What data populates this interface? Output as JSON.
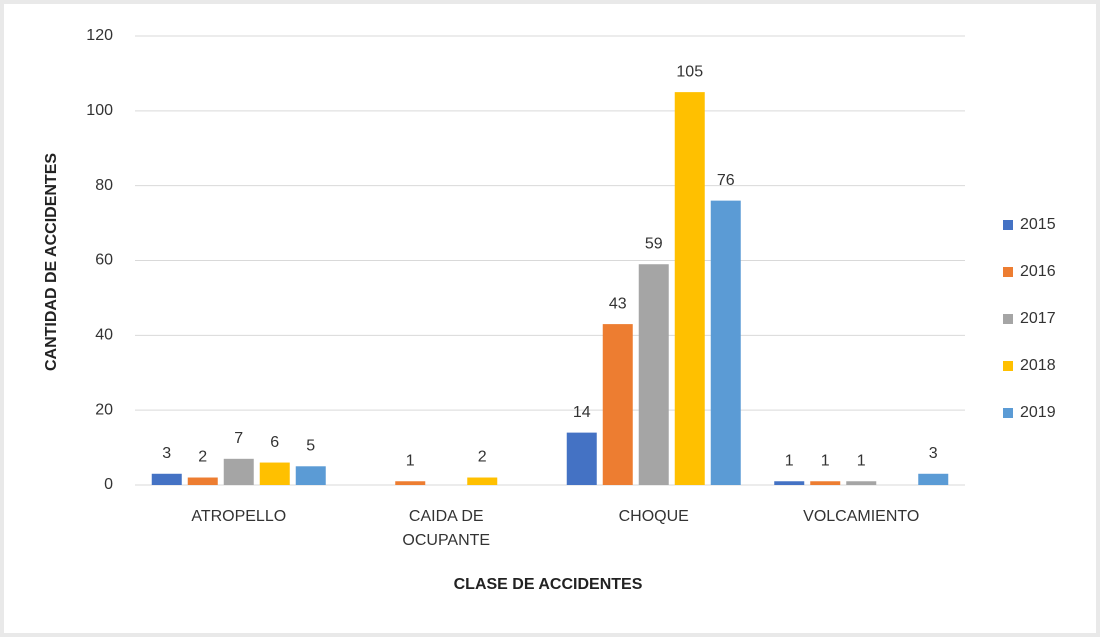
{
  "chart_data": {
    "type": "bar",
    "categories": [
      "ATROPELLO",
      "CAIDA DE OCUPANTE",
      "CHOQUE",
      "VOLCAMIENTO"
    ],
    "series": [
      {
        "name": "2015",
        "color": "#4472c4",
        "values": [
          3,
          null,
          14,
          1
        ]
      },
      {
        "name": "2016",
        "color": "#ed7d31",
        "values": [
          2,
          1,
          43,
          1
        ]
      },
      {
        "name": "2017",
        "color": "#a5a5a5",
        "values": [
          7,
          null,
          59,
          1
        ]
      },
      {
        "name": "2018",
        "color": "#ffc000",
        "values": [
          6,
          2,
          105,
          null
        ]
      },
      {
        "name": "2019",
        "color": "#5b9bd5",
        "values": [
          5,
          null,
          76,
          3
        ]
      }
    ],
    "xlabel": "CLASE DE ACCIDENTES",
    "ylabel": "CANTIDAD DE ACCIDENTES",
    "ylim": [
      0,
      120
    ],
    "yticks": [
      0,
      20,
      40,
      60,
      80,
      100,
      120
    ],
    "grid": true,
    "legend": "right"
  }
}
